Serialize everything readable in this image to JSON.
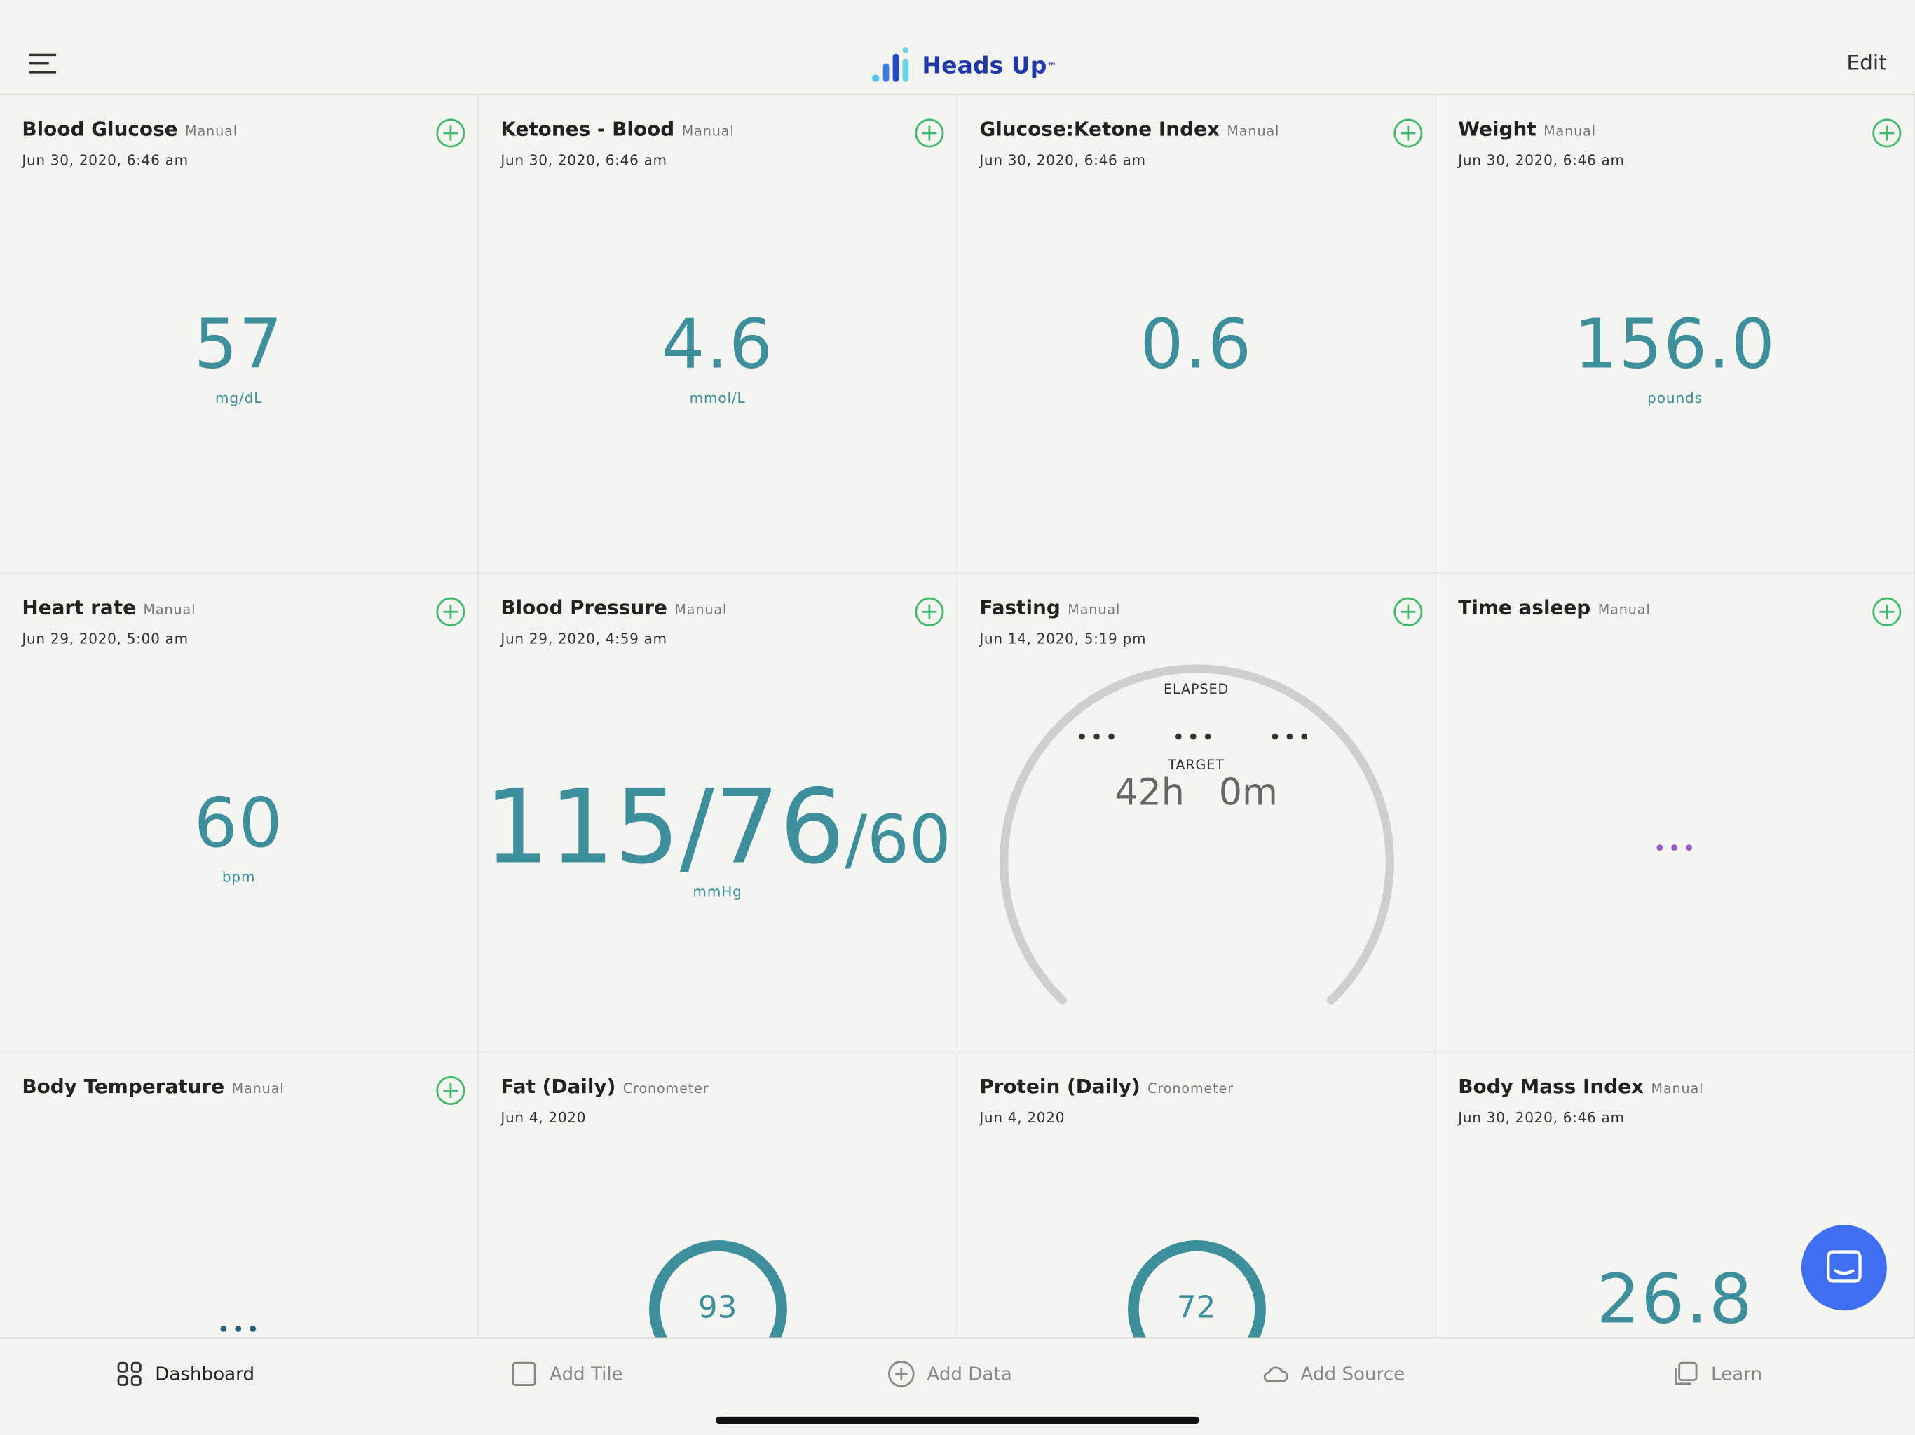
{
  "header": {
    "logo": "Heads Up",
    "tm": "™",
    "edit": "Edit"
  },
  "tiles": [
    {
      "title": "Blood Glucose",
      "source": "Manual",
      "date": "Jun 30, 2020, 6:46 am",
      "value": "57",
      "unit": "mg/dL"
    },
    {
      "title": "Ketones - Blood",
      "source": "Manual",
      "date": "Jun 30, 2020, 6:46 am",
      "value": "4.6",
      "unit": "mmol/L"
    },
    {
      "title": "Glucose:Ketone Index",
      "source": "Manual",
      "date": "Jun 30, 2020, 6:46 am",
      "value": "0.6"
    },
    {
      "title": "Weight",
      "source": "Manual",
      "date": "Jun 30, 2020, 6:46 am",
      "value": "156.0",
      "unit": "pounds"
    },
    {
      "title": "Heart rate",
      "source": "Manual",
      "date": "Jun 29, 2020, 5:00 am",
      "value": "60",
      "unit": "bpm"
    },
    {
      "title": "Blood Pressure",
      "source": "Manual",
      "date": "Jun 29, 2020, 4:59 am",
      "value": "115/76",
      "value2": "/60",
      "unit": "mmHg"
    },
    {
      "title": "Fasting",
      "source": "Manual",
      "date": "Jun 14, 2020, 5:19 pm",
      "elapsed": "ELAPSED",
      "target": "TARGET",
      "hours": "42h",
      "minutes": "0m"
    },
    {
      "title": "Time asleep",
      "source": "Manual"
    },
    {
      "title": "Body Temperature",
      "source": "Manual"
    },
    {
      "title": "Fat (Daily)",
      "source": "Cronometer",
      "date": "Jun 4, 2020",
      "ring": "93"
    },
    {
      "title": "Protein (Daily)",
      "source": "Cronometer",
      "date": "Jun 4, 2020",
      "ring": "72"
    },
    {
      "title": "Body Mass Index",
      "source": "Manual",
      "date": "Jun 30, 2020, 6:46 am",
      "value": "26.8"
    }
  ],
  "nav": [
    "Dashboard",
    "Add Tile",
    "Add Data",
    "Add Source",
    "Learn"
  ]
}
